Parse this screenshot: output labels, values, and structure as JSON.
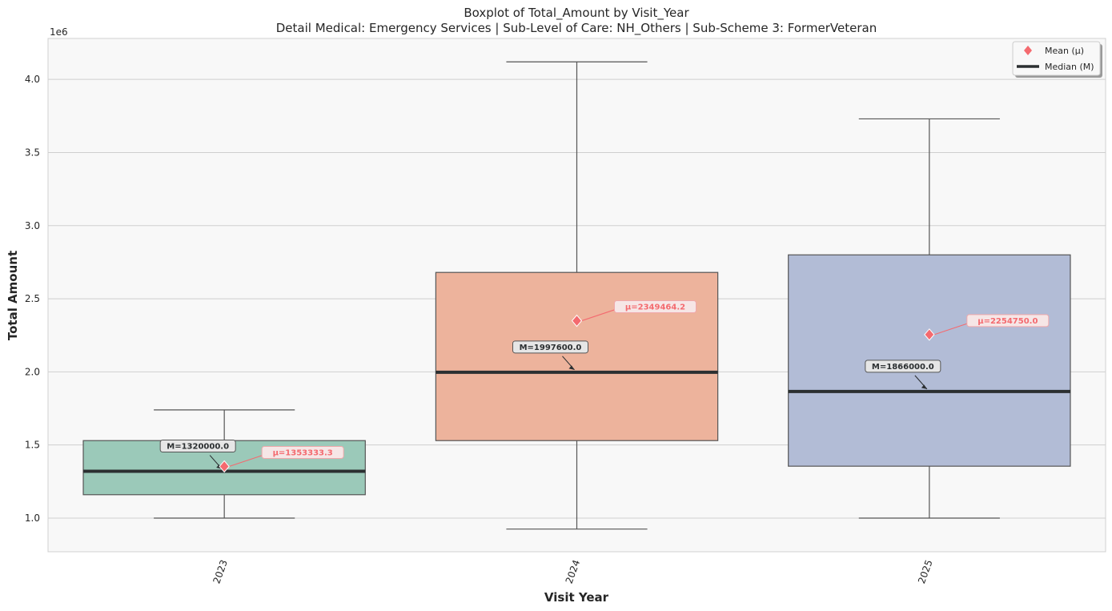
{
  "chart_data": {
    "type": "boxplot",
    "title": "Boxplot of Total_Amount by Visit_Year",
    "subtitle": "Detail Medical: Emergency Services | Sub-Level of Care: NH_Others | Sub-Scheme 3: FormerVeteran",
    "xlabel": "Visit Year",
    "ylabel": "Total Amount",
    "y_offset_label": "1e6",
    "y_scale_factor": 1000000,
    "ylim": [
      0.77,
      4.28
    ],
    "yticks": [
      "1.0",
      "1.5",
      "2.0",
      "2.5",
      "3.0",
      "3.5",
      "4.0"
    ],
    "grid": true,
    "legend": {
      "position": "top-right",
      "entries": [
        {
          "label": "Mean (μ)",
          "marker": "diamond",
          "color": "#f46a6f"
        },
        {
          "label": "Median (M)",
          "marker": "line",
          "color": "#2b2f31"
        }
      ]
    },
    "categories": [
      "2023",
      "2024",
      "2025"
    ],
    "boxes": [
      {
        "category": "2023",
        "whisker_low": 1.0,
        "q1": 1.16,
        "median": 1.32,
        "q3": 1.53,
        "whisker_high": 1.74,
        "mean": 1.3533333,
        "color": "#9bc9b9",
        "median_label": "M=1320000.0",
        "mean_label": "μ=1353333.3"
      },
      {
        "category": "2024",
        "whisker_low": 0.925,
        "q1": 1.53,
        "median": 1.9976,
        "q3": 2.68,
        "whisker_high": 4.12,
        "mean": 2.3494642,
        "color": "#edb39c",
        "median_label": "M=1997600.0",
        "mean_label": "μ=2349464.2"
      },
      {
        "category": "2025",
        "whisker_low": 1.0,
        "q1": 1.355,
        "median": 1.866,
        "q3": 2.8,
        "whisker_high": 3.73,
        "mean": 2.25475,
        "color": "#b2bcd6",
        "median_label": "M=1866000.0",
        "mean_label": "μ=2254750.0"
      }
    ]
  }
}
